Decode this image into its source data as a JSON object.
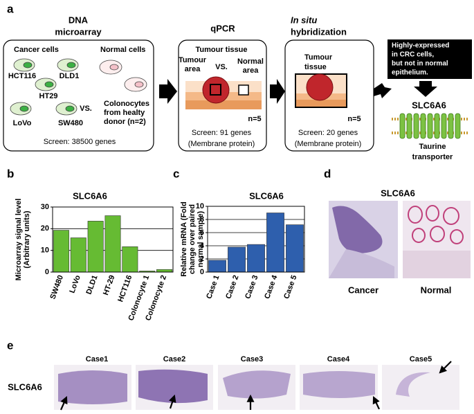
{
  "panel_labels": [
    "a",
    "b",
    "c",
    "d",
    "e"
  ],
  "microarray": {
    "title_lines": [
      "DNA",
      "microarray"
    ],
    "cancer_heading": "Cancer  cells",
    "normal_heading": "Normal  cells",
    "cell_lines": [
      "HCT116",
      "DLD1",
      "HT29",
      "LoVo",
      "SW480"
    ],
    "vs": "VS.",
    "normal_lines": [
      "Colonocytes",
      "from healty",
      "donor (n=2)"
    ],
    "screen": "Screen: 38500 genes"
  },
  "qpcr": {
    "title": "qPCR",
    "tissue": "Tumour tissue",
    "tumour_area": [
      "Tumour",
      "area"
    ],
    "vs": "VS.",
    "normal_area": [
      "Normal",
      "area"
    ],
    "n": "n=5",
    "screen": "Screen: 91 genes",
    "note": "(Membrane protein)"
  },
  "ish": {
    "title_lines": [
      "In situ",
      "hybridization"
    ],
    "tissue": [
      "Tumour",
      "tissue"
    ],
    "n": "n=5",
    "screen": "Screen: 20  genes",
    "note": "(Membrane protein)"
  },
  "callout": [
    "Highly-expressed",
    "in CRC cells,",
    "but not in normal",
    "epithelium."
  ],
  "target": {
    "name": "SLC6A6",
    "desc": [
      "Taurine",
      "transporter"
    ]
  },
  "chart_data": [
    {
      "type": "bar",
      "title": "SLC6A6",
      "ylabel_lines": [
        "Microarray  signal level",
        "(Arbitrary units)"
      ],
      "categories": [
        "SW480",
        "LoVo",
        "DLD1",
        "HT-29",
        "HCT116",
        "Colonocyte 1",
        "Colonocyte 2"
      ],
      "values": [
        19.3,
        15.8,
        23.5,
        26,
        11.7,
        0.5,
        1.2
      ],
      "color": "#66bb33",
      "ylim": [
        0,
        30
      ],
      "yticks": [
        0,
        10,
        20,
        30
      ],
      "grid": true
    },
    {
      "type": "bar",
      "title": "SLC6A6",
      "ylabel_lines": [
        "Relative mRNA (Fold",
        "change over paired",
        "normal sample)"
      ],
      "categories": [
        "Case 1",
        "Case 2",
        "Case 3",
        "Case 4",
        "Case 5"
      ],
      "values": [
        1.8,
        3.8,
        4.2,
        9,
        7.2
      ],
      "color": "#2e5fad",
      "ylim": [
        0,
        10
      ],
      "yticks": [
        0,
        2,
        4,
        6,
        8,
        10
      ],
      "grid": true
    }
  ],
  "ihc": {
    "title": "SLC6A6",
    "labels": [
      "Cancer",
      "Normal"
    ]
  },
  "cases": {
    "row_label": "SLC6A6",
    "names": [
      "Case1",
      "Case2",
      "Case3",
      "Case4",
      "Case5"
    ]
  }
}
